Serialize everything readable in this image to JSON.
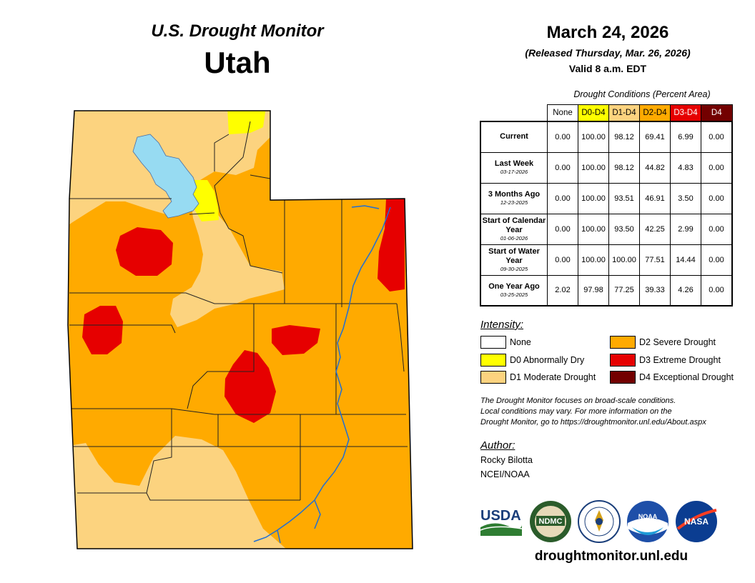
{
  "header": {
    "subtitle": "U.S. Drought Monitor",
    "state": "Utah",
    "date": "March 24, 2026",
    "released": "(Released Thursday, Mar. 26, 2026)",
    "valid": "Valid 8 a.m. EDT"
  },
  "table": {
    "caption": "Drought Conditions (Percent Area)",
    "columns": [
      {
        "label": "None",
        "color": "#ffffff",
        "text_color": "#000000"
      },
      {
        "label": "D0-D4",
        "color": "#ffff00",
        "text_color": "#000000"
      },
      {
        "label": "D1-D4",
        "color": "#fcd37f",
        "text_color": "#000000"
      },
      {
        "label": "D2-D4",
        "color": "#ffaa00",
        "text_color": "#000000"
      },
      {
        "label": "D3-D4",
        "color": "#e60000",
        "text_color": "#ffffff"
      },
      {
        "label": "D4",
        "color": "#730000",
        "text_color": "#ffffff"
      }
    ],
    "rows": [
      {
        "label": "Current",
        "date": "",
        "values": [
          "0.00",
          "100.00",
          "98.12",
          "69.41",
          "6.99",
          "0.00"
        ]
      },
      {
        "label": "Last Week",
        "date": "03-17-2026",
        "values": [
          "0.00",
          "100.00",
          "98.12",
          "44.82",
          "4.83",
          "0.00"
        ]
      },
      {
        "label": "3 Months Ago",
        "date": "12-23-2025",
        "values": [
          "0.00",
          "100.00",
          "93.51",
          "46.91",
          "3.50",
          "0.00"
        ]
      },
      {
        "label": "Start of Calendar Year",
        "date": "01-06-2026",
        "values": [
          "0.00",
          "100.00",
          "93.50",
          "42.25",
          "2.99",
          "0.00"
        ]
      },
      {
        "label": "Start of Water Year",
        "date": "09-30-2025",
        "values": [
          "0.00",
          "100.00",
          "100.00",
          "77.51",
          "14.44",
          "0.00"
        ]
      },
      {
        "label": "One Year Ago",
        "date": "03-25-2025",
        "values": [
          "2.02",
          "97.98",
          "77.25",
          "39.33",
          "4.26",
          "0.00"
        ]
      }
    ]
  },
  "legend": {
    "title": "Intensity:",
    "items": [
      {
        "label": "None",
        "color": "#ffffff"
      },
      {
        "label": "D0 Abnormally Dry",
        "color": "#ffff00"
      },
      {
        "label": "D1 Moderate Drought",
        "color": "#fcd37f"
      },
      {
        "label": "D2 Severe Drought",
        "color": "#ffaa00"
      },
      {
        "label": "D3 Extreme Drought",
        "color": "#e60000"
      },
      {
        "label": "D4 Exceptional Drought",
        "color": "#730000"
      }
    ]
  },
  "note": {
    "line1": "The Drought Monitor focuses on broad-scale conditions.",
    "line2": "Local conditions may vary. For more information on the",
    "line3": "Drought Monitor, go to https://droughtmonitor.unl.edu/About.aspx"
  },
  "author": {
    "title": "Author:",
    "name": "Rocky Bilotta",
    "org": "NCEI/NOAA"
  },
  "logos": {
    "usda": "USDA",
    "ndmc": "NDMC",
    "noaa": "NOAA",
    "nasa": "NASA"
  },
  "footer": {
    "site": "droughtmonitor.unl.edu"
  },
  "map_colors": {
    "none": "#ffffff",
    "d0": "#ffff00",
    "d1": "#fcd37f",
    "d2": "#ffaa00",
    "d3": "#e60000",
    "d4": "#730000",
    "water": "#97dbf2",
    "river": "#1e6ed6"
  }
}
